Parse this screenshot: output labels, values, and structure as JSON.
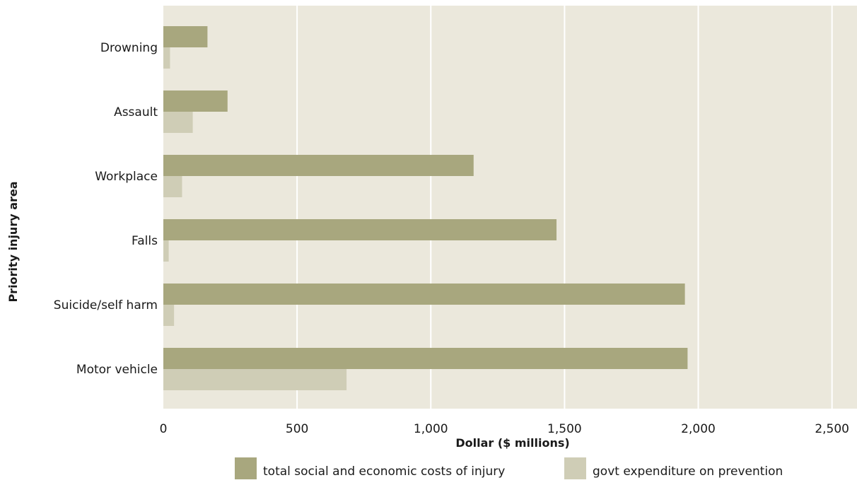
{
  "chart_data": {
    "type": "bar",
    "orientation": "horizontal",
    "categories": [
      "Drowning",
      "Assault",
      "Workplace",
      "Falls",
      "Suicide/self harm",
      "Motor vehicle"
    ],
    "series": [
      {
        "name": "total social and economic costs of injury",
        "color": "#a8a77e",
        "values": [
          165,
          240,
          1160,
          1470,
          1950,
          1960
        ]
      },
      {
        "name": "govt expenditure on prevention",
        "color": "#cfcdb6",
        "values": [
          25,
          110,
          70,
          20,
          40,
          685
        ]
      }
    ],
    "xlabel": "Dollar ($ millions)",
    "ylabel": "Priority injury area",
    "xlim": [
      0,
      2500
    ],
    "xticks": [
      0,
      500,
      1000,
      1500,
      2000,
      2500
    ],
    "xtick_labels": [
      "0",
      "500",
      "1,000",
      "1,500",
      "2,000",
      "2,500"
    ],
    "grid": true,
    "legend": "bottom",
    "colors": {
      "plot_background": "#ebe8dc",
      "grid": "#ffffff"
    }
  }
}
